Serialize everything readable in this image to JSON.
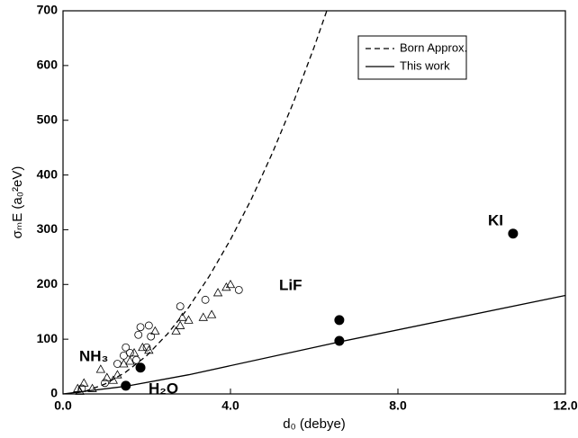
{
  "chart_data": {
    "type": "scatter",
    "xlabel": "d₀ (debye)",
    "ylabel": "σₘE (a₀²eV)",
    "xlim": [
      0,
      12
    ],
    "ylim": [
      0,
      700
    ],
    "xticks": [
      {
        "value": 0,
        "label": "0.0"
      },
      {
        "value": 4,
        "label": "4.0"
      },
      {
        "value": 8,
        "label": "8.0"
      },
      {
        "value": 12,
        "label": "12.0"
      }
    ],
    "yticks": [
      0,
      100,
      200,
      300,
      400,
      500,
      600,
      700
    ],
    "legend": "upper right",
    "series": [
      {
        "name": "Born Approx.",
        "mode": "line",
        "dash": true,
        "color": "#000000",
        "x": [
          0.3,
          0.5,
          1,
          1.5,
          2,
          2.5,
          3,
          3.5,
          4,
          4.5,
          5,
          5.5,
          6,
          6.3
        ],
        "values": [
          2,
          4,
          18,
          40,
          70,
          110,
          158,
          216,
          282,
          356,
          440,
          532,
          634,
          700
        ]
      },
      {
        "name": "This work",
        "mode": "line",
        "dash": false,
        "color": "#000000",
        "x": [
          0,
          1.5,
          3,
          6.6,
          12
        ],
        "values": [
          0,
          14,
          35,
          95,
          180
        ]
      },
      {
        "mode": "markers",
        "marker": "circle-open",
        "color": "#000000",
        "x": [
          0.45,
          1.0,
          1.3,
          1.45,
          1.5,
          1.6,
          1.75,
          1.8,
          1.85,
          2.0,
          2.05,
          2.1,
          2.8,
          3.4,
          4.2
        ],
        "values": [
          10,
          20,
          55,
          70,
          85,
          75,
          62,
          108,
          122,
          85,
          125,
          105,
          160,
          172,
          190
        ]
      },
      {
        "mode": "markers",
        "marker": "triangle-open",
        "color": "#000000",
        "x": [
          0.35,
          0.4,
          0.5,
          0.7,
          0.9,
          1.05,
          1.2,
          1.3,
          1.45,
          1.6,
          1.7,
          1.9,
          2.05,
          2.2,
          2.7,
          2.8,
          2.85,
          3.0,
          3.35,
          3.55,
          3.7,
          3.9,
          4.0
        ],
        "values": [
          10,
          5,
          20,
          10,
          45,
          30,
          25,
          35,
          55,
          60,
          75,
          85,
          80,
          115,
          115,
          125,
          140,
          135,
          140,
          145,
          185,
          195,
          200
        ]
      },
      {
        "mode": "markers",
        "marker": "circle-filled",
        "color": "#000000",
        "x": [
          1.5,
          1.85,
          6.6,
          6.6,
          10.75
        ],
        "values": [
          15,
          48,
          97,
          135,
          293
        ]
      }
    ],
    "annotations": [
      "NH₃",
      "H₂O",
      "LiF",
      "KI"
    ]
  }
}
